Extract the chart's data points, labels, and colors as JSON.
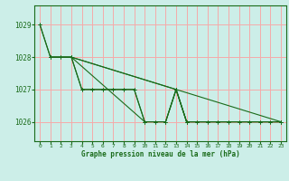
{
  "title": "Graphe pression niveau de la mer (hPa)",
  "xlim": [
    -0.5,
    23.5
  ],
  "ylim": [
    1025.4,
    1029.6
  ],
  "yticks": [
    1026,
    1027,
    1028,
    1029
  ],
  "xticks": [
    0,
    1,
    2,
    3,
    4,
    5,
    6,
    7,
    8,
    9,
    10,
    11,
    12,
    13,
    14,
    15,
    16,
    17,
    18,
    19,
    20,
    21,
    22,
    23
  ],
  "background_color": "#cceee8",
  "grid_color": "#f5aaaa",
  "line_color": "#1a6b1a",
  "lines": [
    {
      "x": [
        0,
        1,
        2,
        3,
        4,
        5,
        6,
        7,
        8,
        9,
        10,
        11,
        12,
        13,
        14,
        15,
        16,
        17,
        18,
        19,
        20,
        21,
        22,
        23
      ],
      "y": [
        1029,
        1028,
        1028,
        1028,
        1027,
        1027,
        1027,
        1027,
        1027,
        1027,
        1026,
        1026,
        1026,
        1027,
        1026,
        1026,
        1026,
        1026,
        1026,
        1026,
        1026,
        1026,
        1026,
        1026
      ]
    },
    {
      "x": [
        1,
        2,
        3,
        4,
        5,
        6,
        7,
        8,
        9,
        10,
        11,
        12,
        13,
        14,
        15,
        16,
        17,
        18,
        19,
        20,
        21,
        22,
        23
      ],
      "y": [
        1028,
        1028,
        1028,
        1027,
        1027,
        1027,
        1027,
        1027,
        1027,
        1026,
        1026,
        1026,
        1027,
        1026,
        1026,
        1026,
        1026,
        1026,
        1026,
        1026,
        1026,
        1026,
        1026
      ]
    },
    {
      "x": [
        0,
        1,
        3,
        13,
        23
      ],
      "y": [
        1029,
        1028,
        1028,
        1027,
        1026
      ]
    },
    {
      "x": [
        1,
        3,
        13,
        14,
        23
      ],
      "y": [
        1028,
        1028,
        1027,
        1026,
        1026
      ]
    },
    {
      "x": [
        3,
        10,
        12,
        13,
        14,
        23
      ],
      "y": [
        1028,
        1026,
        1026,
        1027,
        1026,
        1026
      ]
    }
  ]
}
